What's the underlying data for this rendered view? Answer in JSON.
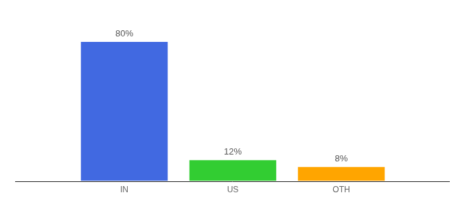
{
  "chart_data": {
    "type": "bar",
    "categories": [
      "IN",
      "US",
      "OTH"
    ],
    "values": [
      80,
      12,
      8
    ],
    "value_labels": [
      "80%",
      "12%",
      "8%"
    ],
    "colors": [
      "#4169e1",
      "#32cd32",
      "#ffa500"
    ],
    "data_labels": true,
    "tick_labels": "x",
    "grid": false
  }
}
